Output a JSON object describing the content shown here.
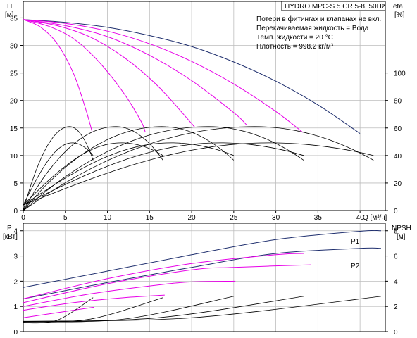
{
  "chart_data": [
    {
      "type": "line",
      "title": "HYDRO MPC-S 5 CR 5-8, 50Hz",
      "ylabel": "H",
      "ylabel_unit": "[м]",
      "y2label": "eta",
      "y2label_unit": "[%]",
      "xlabel": "Q [м³/ч]",
      "xlim": [
        0,
        43
      ],
      "ylim": [
        0,
        38
      ],
      "y2lim": [
        0,
        152
      ],
      "grid": true,
      "xticks": [
        "0",
        "5",
        "10",
        "15",
        "20",
        "25",
        "30",
        "35",
        "40"
      ],
      "yticks": [
        "0",
        "5",
        "10",
        "15",
        "20",
        "25",
        "30",
        "35"
      ],
      "y2ticks": [
        "0",
        "20",
        "40",
        "60",
        "80",
        "100"
      ],
      "notes": [
        "Потери в фитингах и клапанах не вкл.",
        "Перекачиваемая жидкость = Вода",
        "Темп. жидкости = 20 °C",
        "Плотность = 998.2 кг/м³"
      ],
      "head_curves": [
        {
          "color": "#1f2f6e",
          "points": [
            [
              0,
              34.7
            ],
            [
              5,
              34.2
            ],
            [
              10,
              33.3
            ],
            [
              15,
              31.8
            ],
            [
              20,
              29.8
            ],
            [
              25,
              27.0
            ],
            [
              30,
              23.5
            ],
            [
              35,
              19.2
            ],
            [
              40,
              14.0
            ]
          ]
        },
        {
          "color": "#e800e8",
          "points": [
            [
              0,
              34.7
            ],
            [
              5,
              34.0
            ],
            [
              10,
              32.6
            ],
            [
              15,
              30.3
            ],
            [
              20,
              27.1
            ],
            [
              25,
              23.0
            ],
            [
              30,
              18.0
            ],
            [
              33.2,
              14.2
            ]
          ]
        },
        {
          "color": "#e800e8",
          "points": [
            [
              0,
              34.7
            ],
            [
              5,
              33.6
            ],
            [
              10,
              31.6
            ],
            [
              15,
              28.2
            ],
            [
              20,
              23.6
            ],
            [
              25,
              17.8
            ],
            [
              26.5,
              15.6
            ]
          ]
        },
        {
          "color": "#e800e8",
          "points": [
            [
              0,
              34.7
            ],
            [
              4,
              33.6
            ],
            [
              8,
              31.5
            ],
            [
              12,
              27.8
            ],
            [
              16,
              22.6
            ],
            [
              20,
              15.8
            ],
            [
              20.2,
              15.4
            ]
          ]
        },
        {
          "color": "#e800e8",
          "points": [
            [
              0,
              34.7
            ],
            [
              3,
              33.5
            ],
            [
              6,
              31.2
            ],
            [
              9,
              27.0
            ],
            [
              12,
              21.2
            ],
            [
              14,
              16.2
            ],
            [
              14.5,
              14.2
            ]
          ]
        },
        {
          "color": "#e800e8",
          "points": [
            [
              0,
              34.7
            ],
            [
              2,
              33.4
            ],
            [
              4,
              30.4
            ],
            [
              6,
              24.8
            ],
            [
              7.5,
              18.0
            ],
            [
              8.2,
              14.2
            ]
          ]
        }
      ],
      "efficiency_curves": [
        {
          "color": "#000000",
          "peak_q": 5.5,
          "max_q": 8.3,
          "peak": 61
        },
        {
          "color": "#000000",
          "peak_q": 11,
          "max_q": 16.6,
          "peak": 61
        },
        {
          "color": "#000000",
          "peak_q": 16.5,
          "max_q": 25,
          "peak": 61
        },
        {
          "color": "#000000",
          "peak_q": 22,
          "max_q": 33.3,
          "peak": 61
        },
        {
          "color": "#000000",
          "peak_q": 27.5,
          "max_q": 41.6,
          "peak": 61
        }
      ],
      "operating_head_curves": [
        {
          "color": "#000000",
          "start_q": 0,
          "end_q": 8.3,
          "start": 1,
          "peak": 12.3,
          "end": 10
        },
        {
          "color": "#000000",
          "start_q": 0,
          "end_q": 16.6,
          "start": 1,
          "peak": 12.3,
          "end": 10
        },
        {
          "color": "#000000",
          "start_q": 0,
          "end_q": 25,
          "start": 1,
          "peak": 12.3,
          "end": 10
        },
        {
          "color": "#000000",
          "start_q": 0,
          "end_q": 33.3,
          "start": 1,
          "peak": 12.3,
          "end": 10
        },
        {
          "color": "#000000",
          "start_q": 0,
          "end_q": 41.6,
          "start": 1,
          "peak": 12.3,
          "end": 10
        }
      ]
    },
    {
      "type": "line",
      "ylabel": "P",
      "ylabel_unit": "[кВт]",
      "y2label": "NPSH",
      "y2label_unit": "[м]",
      "xlim": [
        0,
        43
      ],
      "ylim": [
        0,
        4.3
      ],
      "y2lim": [
        0,
        8.6
      ],
      "grid": true,
      "yticks": [
        "0",
        "1",
        "2",
        "3",
        "4"
      ],
      "y2ticks": [
        "0",
        "2",
        "4",
        "6",
        "8"
      ],
      "series_labels": [
        "P1",
        "P2"
      ],
      "power_curves": [
        {
          "name": "P1",
          "color": "#1f2f6e",
          "points": [
            [
              0,
              1.75
            ],
            [
              10,
              2.4
            ],
            [
              20,
              3.05
            ],
            [
              30,
              3.65
            ],
            [
              40,
              3.98
            ],
            [
              42.5,
              4.0
            ]
          ]
        },
        {
          "name": "P2",
          "color": "#1f2f6e",
          "points": [
            [
              0,
              1.3
            ],
            [
              10,
              1.95
            ],
            [
              20,
              2.55
            ],
            [
              30,
              3.1
            ],
            [
              40,
              3.3
            ],
            [
              42.5,
              3.3
            ]
          ]
        },
        {
          "color": "#e800e8",
          "points": [
            [
              0,
              1.3
            ],
            [
              10,
              2.1
            ],
            [
              20,
              2.7
            ],
            [
              30,
              3.05
            ],
            [
              33.3,
              3.1
            ]
          ]
        },
        {
          "color": "#e800e8",
          "points": [
            [
              0,
              1.15
            ],
            [
              10,
              1.9
            ],
            [
              20,
              2.45
            ],
            [
              25,
              2.55
            ],
            [
              34.2,
              2.65
            ]
          ]
        },
        {
          "color": "#e800e8",
          "points": [
            [
              0,
              1.0
            ],
            [
              8,
              1.5
            ],
            [
              16,
              1.85
            ],
            [
              20,
              1.97
            ],
            [
              25.2,
              2.0
            ]
          ]
        },
        {
          "color": "#e800e8",
          "points": [
            [
              0,
              0.85
            ],
            [
              6,
              1.15
            ],
            [
              12,
              1.35
            ],
            [
              16.8,
              1.45
            ]
          ]
        },
        {
          "color": "#e800e8",
          "points": [
            [
              0,
              0.55
            ],
            [
              4,
              0.75
            ],
            [
              8,
              0.95
            ],
            [
              8.3,
              0.95
            ]
          ]
        }
      ],
      "npsh_curves": [
        {
          "color": "#000000",
          "points": [
            [
              0,
              0.7
            ],
            [
              4,
              0.9
            ],
            [
              8.3,
              2.7
            ]
          ]
        },
        {
          "color": "#000000",
          "points": [
            [
              0,
              0.75
            ],
            [
              8,
              1.0
            ],
            [
              16.6,
              2.7
            ]
          ]
        },
        {
          "color": "#000000",
          "points": [
            [
              0,
              0.78
            ],
            [
              12,
              1.0
            ],
            [
              25,
              2.8
            ]
          ]
        },
        {
          "color": "#000000",
          "points": [
            [
              0,
              0.8
            ],
            [
              16,
              1.1
            ],
            [
              33.3,
              2.8
            ]
          ]
        },
        {
          "color": "#000000",
          "points": [
            [
              0,
              0.82
            ],
            [
              20,
              1.1
            ],
            [
              42.5,
              2.8
            ]
          ]
        }
      ]
    }
  ]
}
